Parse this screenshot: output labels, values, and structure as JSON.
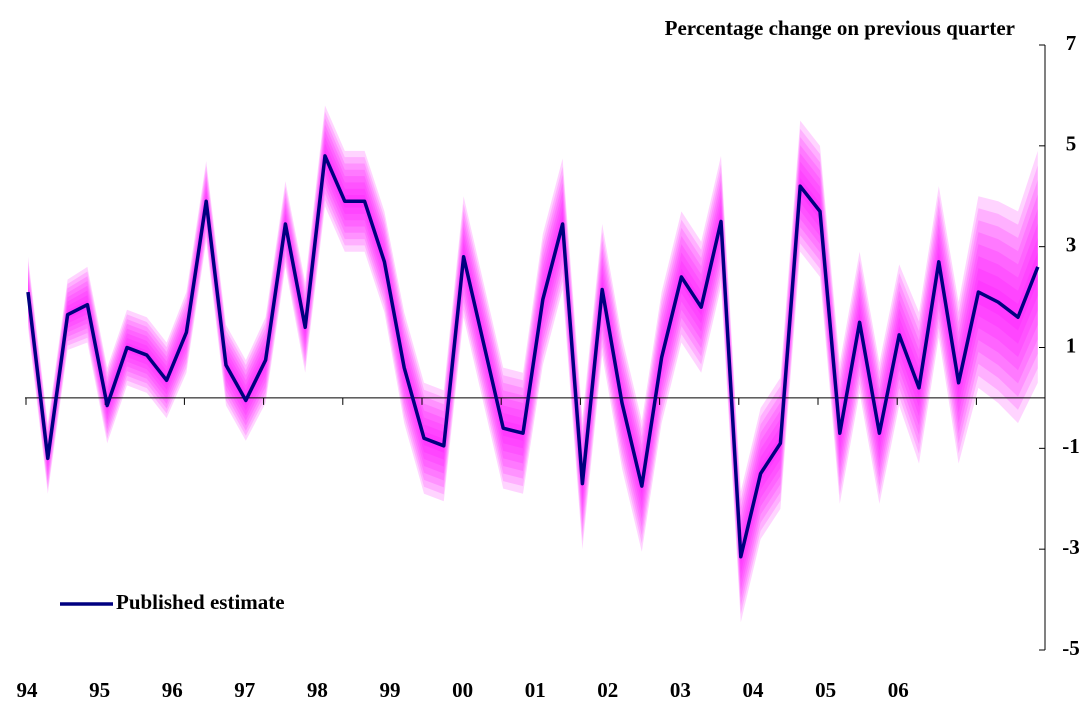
{
  "chart_data": {
    "type": "fan",
    "title": "Percentage change on previous quarter",
    "categories": [
      "94",
      null,
      null,
      null,
      "95",
      null,
      null,
      null,
      "96",
      null,
      null,
      null,
      "97",
      null,
      null,
      null,
      "98",
      null,
      null,
      null,
      "99",
      null,
      null,
      null,
      "00",
      null,
      null,
      null,
      "01",
      null,
      null,
      null,
      "02",
      null,
      null,
      null,
      "03",
      null,
      null,
      null,
      "04",
      null,
      null,
      null,
      "05",
      null,
      null,
      null,
      "06",
      null,
      null,
      null
    ],
    "series": [
      {
        "name": "Published estimate",
        "color": "#000080",
        "values": [
          2.1,
          -1.2,
          1.65,
          1.85,
          -0.15,
          1.0,
          0.85,
          0.35,
          1.3,
          3.9,
          0.65,
          -0.05,
          0.75,
          3.45,
          1.4,
          4.8,
          3.9,
          3.9,
          2.7,
          0.6,
          -0.8,
          -0.95,
          2.8,
          1.1,
          -0.6,
          -0.7,
          1.95,
          3.45,
          -1.7,
          2.15,
          -0.1,
          -1.75,
          0.8,
          2.4,
          1.8,
          3.5,
          -3.15,
          -1.5,
          -0.9,
          4.2,
          3.7,
          -0.7,
          1.5,
          -0.7,
          1.25,
          0.2,
          2.7,
          0.3,
          2.1,
          1.9,
          1.6,
          2.6
        ]
      }
    ],
    "fan_spread": [
      0.7,
      0.7,
      0.7,
      0.75,
      0.75,
      0.75,
      0.75,
      0.75,
      0.8,
      0.8,
      0.8,
      0.8,
      0.85,
      0.85,
      0.9,
      1.0,
      1.0,
      1.0,
      1.0,
      1.1,
      1.1,
      1.1,
      1.2,
      1.2,
      1.2,
      1.2,
      1.3,
      1.3,
      1.3,
      1.3,
      1.3,
      1.3,
      1.3,
      1.3,
      1.3,
      1.3,
      1.3,
      1.3,
      1.3,
      1.3,
      1.3,
      1.4,
      1.4,
      1.4,
      1.4,
      1.5,
      1.5,
      1.6,
      1.9,
      2.0,
      2.1,
      2.3
    ],
    "fan_color": "#ff00ff",
    "ylim": [
      -5,
      7
    ],
    "yticks": [
      -5,
      -3,
      -1,
      1,
      3,
      5,
      7
    ],
    "legend": "bottom-left"
  }
}
